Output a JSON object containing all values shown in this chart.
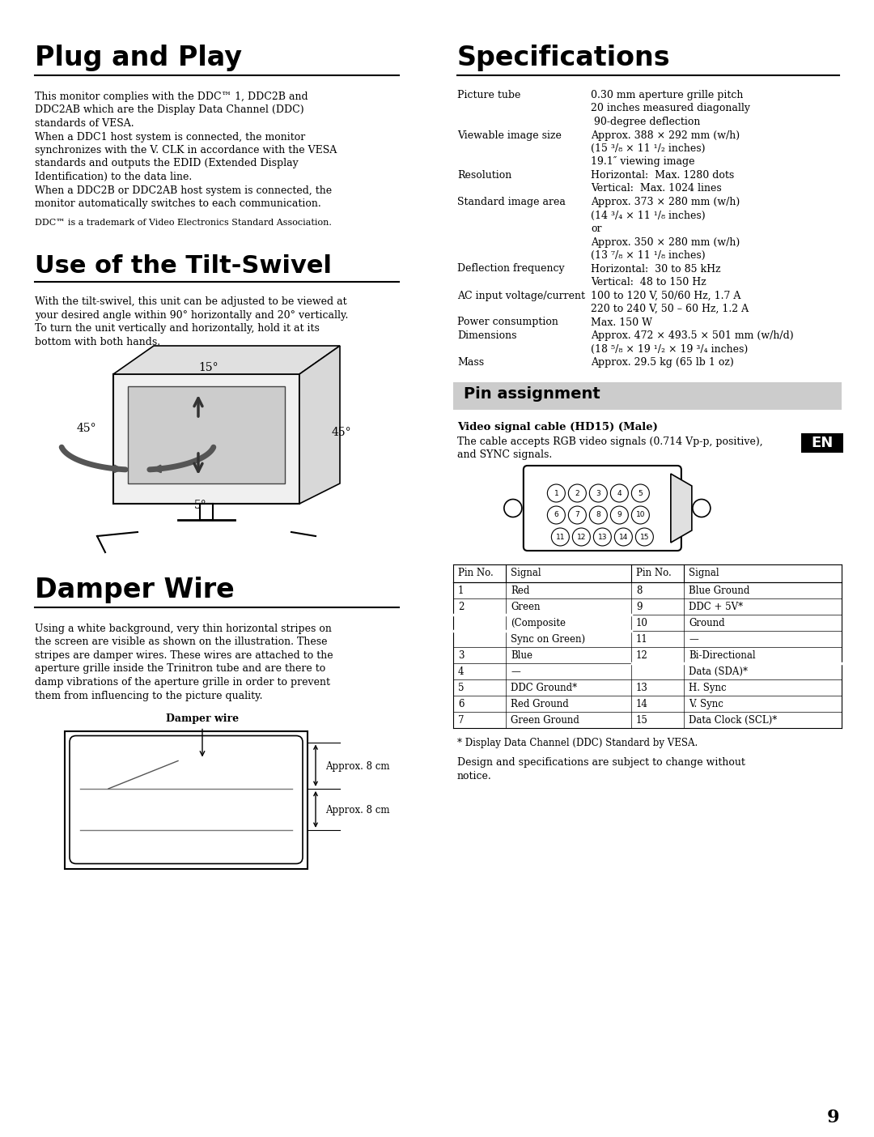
{
  "bg_color": "#ffffff",
  "page_num": "9",
  "plug_play_title": "Plug and Play",
  "plug_play_body": [
    "This monitor complies with the DDC™ 1, DDC2B and",
    "DDC2AB which are the Display Data Channel (DDC)",
    "standards of VESA.",
    "When a DDC1 host system is connected, the monitor",
    "synchronizes with the V. CLK in accordance with the VESA",
    "standards and outputs the EDID (Extended Display",
    "Identification) to the data line.",
    "When a DDC2B or DDC2AB host system is connected, the",
    "monitor automatically switches to each communication."
  ],
  "plug_play_note": "DDC™ is a trademark of Video Electronics Standard Association.",
  "tilt_title": "Use of the Tilt-Swivel",
  "tilt_body": [
    "With the tilt-swivel, this unit can be adjusted to be viewed at",
    "your desired angle within 90° horizontally and 20° vertically.",
    "To turn the unit vertically and horizontally, hold it at its",
    "bottom with both hands."
  ],
  "damper_title": "Damper Wire",
  "damper_body": [
    "Using a white background, very thin horizontal stripes on",
    "the screen are visible as shown on the illustration. These",
    "stripes are damper wires. These wires are attached to the",
    "aperture grille inside the Trinitron tube and are there to",
    "damp vibrations of the aperture grille in order to prevent",
    "them from influencing to the picture quality."
  ],
  "specs_title": "Specifications",
  "specs": [
    [
      "Picture tube",
      [
        "0.30 mm aperture grille pitch",
        "20 inches measured diagonally",
        " 90-degree deflection"
      ]
    ],
    [
      "Viewable image size",
      [
        "Approx. 388 × 292 mm (w/h)",
        "(15 ³/₈ × 11 ¹/₂ inches)",
        "19.1″ viewing image"
      ]
    ],
    [
      "Resolution",
      [
        "Horizontal:  Max. 1280 dots",
        "Vertical:  Max. 1024 lines"
      ]
    ],
    [
      "Standard image area",
      [
        "Approx. 373 × 280 mm (w/h)",
        "(14 ³/₄ × 11 ¹/₈ inches)",
        "or",
        "Approx. 350 × 280 mm (w/h)",
        "(13 ⁷/₈ × 11 ¹/₈ inches)"
      ]
    ],
    [
      "Deflection frequency",
      [
        "Horizontal:  30 to 85 kHz",
        "Vertical:  48 to 150 Hz"
      ]
    ],
    [
      "AC input voltage/current",
      [
        "100 to 120 V, 50/60 Hz, 1.7 A",
        "220 to 240 V, 50 – 60 Hz, 1.2 A"
      ]
    ],
    [
      "Power consumption",
      [
        "Max. 150 W"
      ]
    ],
    [
      "Dimensions",
      [
        "Approx. 472 × 493.5 × 501 mm (w/h/d)",
        "(18 ⁵/₈ × 19 ¹/₂ × 19 ³/₄ inches)"
      ]
    ],
    [
      "Mass",
      [
        "Approx. 29.5 kg (65 lb 1 oz)"
      ]
    ]
  ],
  "pin_title": "Pin assignment",
  "pin_cable_title": "Video signal cable (HD15) (Male)",
  "pin_cable_body": [
    "The cable accepts RGB video signals (0.714 Vp-p, positive),",
    "and SYNC signals."
  ],
  "en_label": "EN",
  "pin_table_headers": [
    "Pin No.",
    "Signal",
    "Pin No.",
    "Signal"
  ],
  "pin_table_data": [
    {
      "left_pin": "1",
      "left_sig": [
        "Red"
      ],
      "right_pin": "8",
      "right_sig": [
        "Blue Ground"
      ]
    },
    {
      "left_pin": "2",
      "left_sig": [
        "Green",
        "(Composite",
        "Sync on Green)"
      ],
      "right_pin": "9",
      "right_sig": [
        "DDC + 5V*"
      ]
    },
    {
      "left_pin": "",
      "left_sig": [],
      "right_pin": "10",
      "right_sig": [
        "Ground"
      ]
    },
    {
      "left_pin": "",
      "left_sig": [],
      "right_pin": "11",
      "right_sig": [
        "—"
      ]
    },
    {
      "left_pin": "3",
      "left_sig": [
        "Blue"
      ],
      "right_pin": "12",
      "right_sig": [
        "Bi-Directional",
        "Data (SDA)*"
      ]
    },
    {
      "left_pin": "4",
      "left_sig": [
        "—"
      ],
      "right_pin": "",
      "right_sig": []
    },
    {
      "left_pin": "5",
      "left_sig": [
        "DDC Ground*"
      ],
      "right_pin": "13",
      "right_sig": [
        "H. Sync"
      ]
    },
    {
      "left_pin": "6",
      "left_sig": [
        "Red Ground"
      ],
      "right_pin": "14",
      "right_sig": [
        "V. Sync"
      ]
    },
    {
      "left_pin": "7",
      "left_sig": [
        "Green Ground"
      ],
      "right_pin": "15",
      "right_sig": [
        "Data Clock (SCL)*"
      ]
    }
  ],
  "pin_note": "* Display Data Channel (DDC) Standard by VESA.",
  "pin_footer": [
    "Design and specifications are subject to change without",
    "notice."
  ]
}
